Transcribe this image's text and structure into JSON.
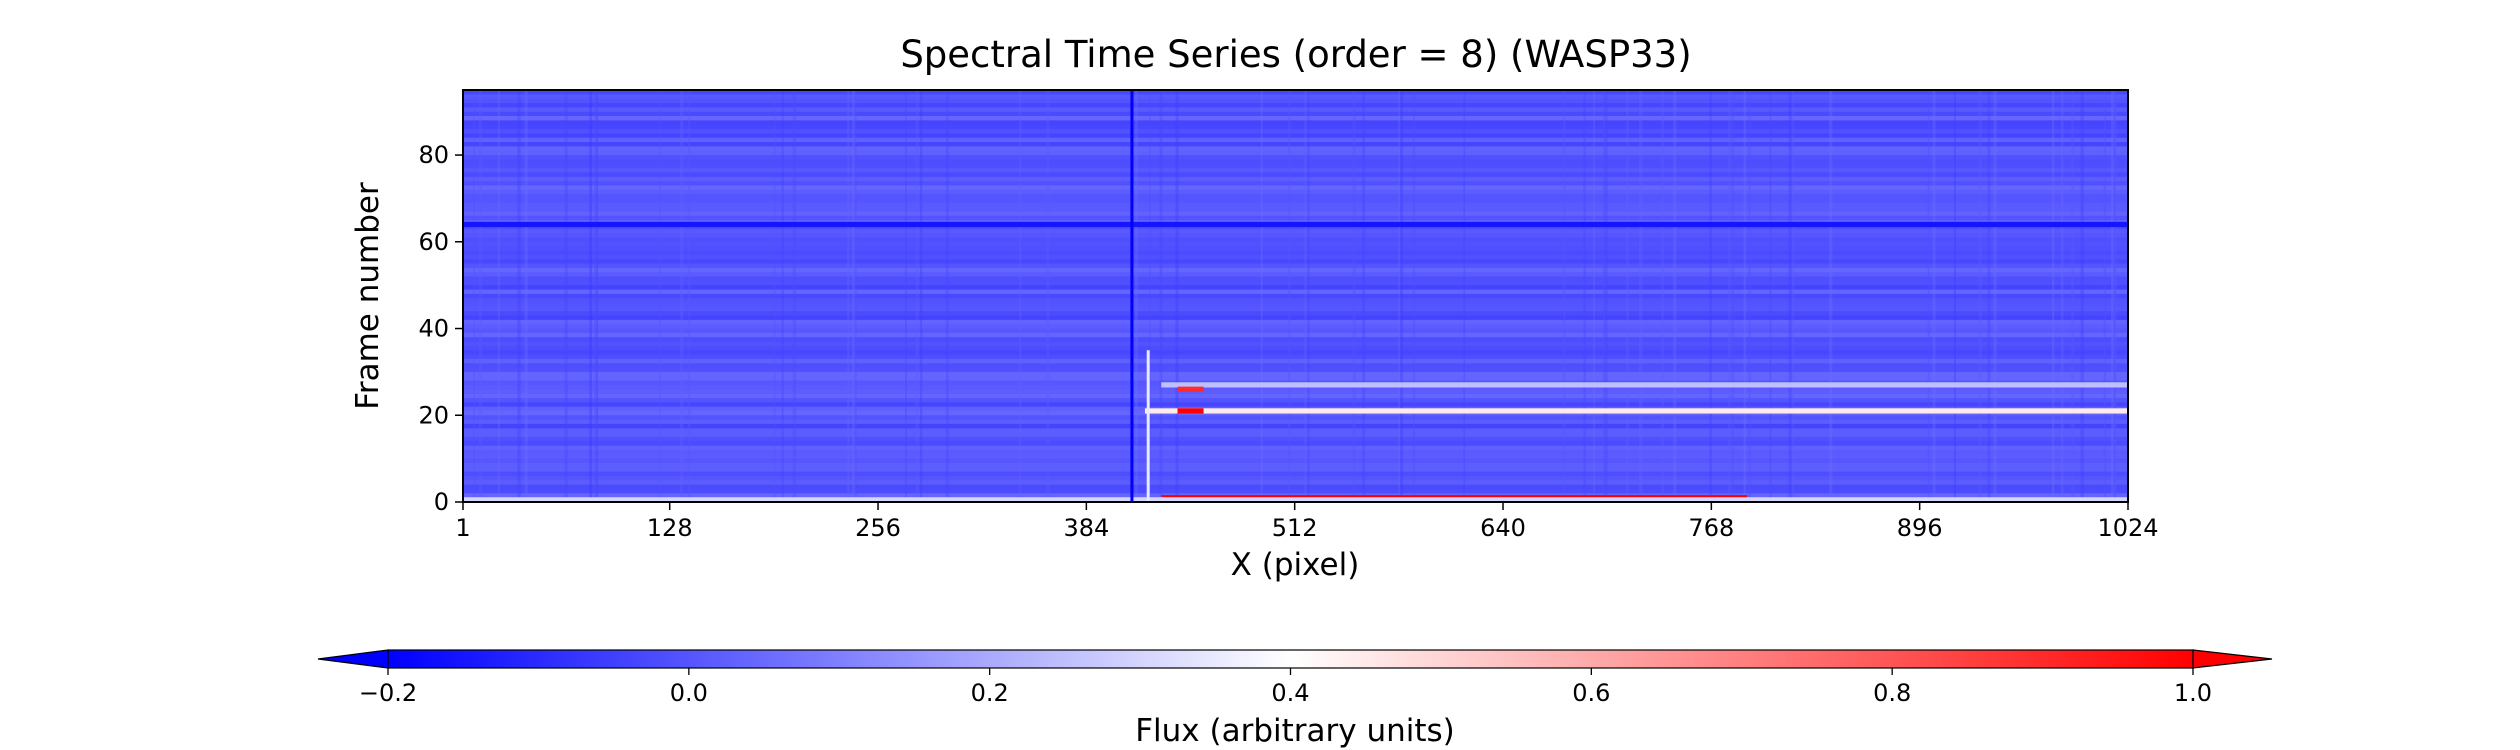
{
  "chart_data": {
    "type": "heatmap",
    "title": "Spectral Time Series (order = 8) (WASP33)",
    "xlabel": "X (pixel)",
    "ylabel": "Frame number",
    "xlim": [
      1,
      1024
    ],
    "ylim": [
      0,
      95
    ],
    "x_ticks": [
      1,
      128,
      256,
      384,
      512,
      640,
      768,
      896,
      1024
    ],
    "y_ticks": [
      0,
      20,
      40,
      60,
      80
    ],
    "colormap": "bwr",
    "colorbar": {
      "label": "Flux (arbitrary units)",
      "vmin": -0.2,
      "vmax": 1.0,
      "extend": "both",
      "orientation": "horizontal",
      "placement": "bottom",
      "ticks": [
        "−0.2",
        "0.0",
        "0.2",
        "0.4",
        "0.6",
        "0.8",
        "1.0"
      ],
      "tick_values": [
        -0.2,
        0.0,
        0.2,
        0.4,
        0.6,
        0.8,
        1.0
      ]
    },
    "background_value": 0.0,
    "features": [
      {
        "kind": "row",
        "frame": 1,
        "x_range": [
          430,
          790
        ],
        "value": 1.0
      },
      {
        "kind": "row",
        "frame": 0.5,
        "x_range": [
          1,
          1024
        ],
        "value": 0.3
      },
      {
        "kind": "row",
        "frame": 21,
        "x_range": [
          420,
          1024
        ],
        "value": 0.45
      },
      {
        "kind": "row",
        "frame": 21,
        "x_range": [
          440,
          456
        ],
        "value": 1.0
      },
      {
        "kind": "row",
        "frame": 27,
        "x_range": [
          430,
          1024
        ],
        "value": 0.25
      },
      {
        "kind": "row",
        "frame": 26,
        "x_range": [
          440,
          456
        ],
        "value": 0.9
      },
      {
        "kind": "row",
        "frame": 64,
        "x_range": [
          1,
          1024
        ],
        "value": -0.15
      },
      {
        "kind": "column",
        "x": 412,
        "frame_range": [
          0,
          95
        ],
        "value": -0.2
      },
      {
        "kind": "column",
        "x": 422,
        "frame_range": [
          0,
          35
        ],
        "value": 0.35
      }
    ],
    "colors": {
      "low": "#0000ff",
      "mid": "#ffffff",
      "high": "#ff0000"
    }
  }
}
